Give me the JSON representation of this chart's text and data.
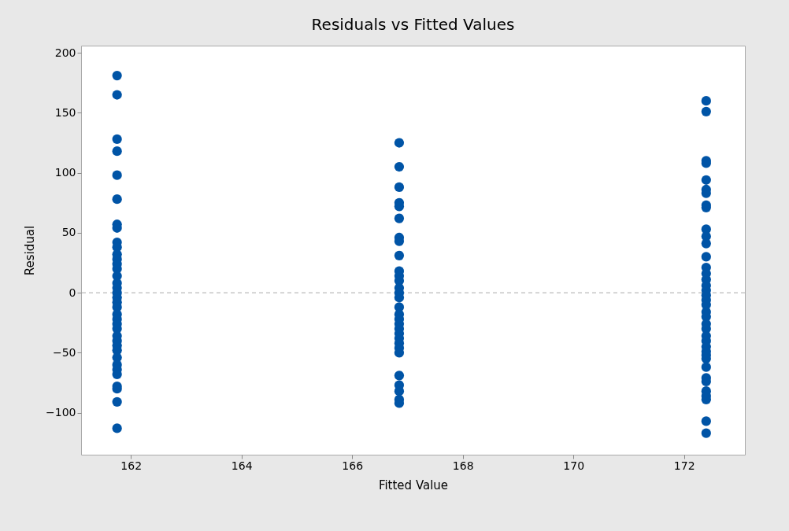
{
  "chart_data": {
    "type": "scatter",
    "title": "Residuals vs Fitted Values",
    "xlabel": "Fitted Value",
    "ylabel": "Residual",
    "xlim": [
      161.1,
      173.1
    ],
    "xticks": [
      162,
      164,
      166,
      168,
      170,
      172
    ],
    "ylim": [
      -135,
      206
    ],
    "yticks": [
      -100,
      -50,
      0,
      50,
      100,
      150,
      200
    ],
    "grid": false,
    "marker": "circle",
    "series": [
      {
        "color": "#0054a6",
        "x": [
          161.75,
          161.75,
          161.75,
          161.75,
          161.75,
          161.75,
          161.75,
          161.75,
          161.75,
          161.75,
          161.75,
          161.75,
          161.75,
          161.75,
          161.75,
          161.75,
          161.75,
          161.75,
          161.75,
          161.75,
          161.75,
          161.75,
          161.75,
          161.75,
          161.75,
          161.75,
          161.75,
          161.75,
          161.75,
          161.75,
          161.75,
          161.75,
          161.75,
          161.75,
          161.75,
          161.75,
          161.75,
          166.85,
          166.85,
          166.85,
          166.85,
          166.85,
          166.85,
          166.85,
          166.85,
          166.85,
          166.85,
          166.85,
          166.85,
          166.85,
          166.85,
          166.85,
          166.85,
          166.85,
          166.85,
          166.85,
          166.85,
          166.85,
          166.85,
          166.85,
          166.85,
          166.85,
          166.85,
          166.85,
          166.85,
          166.85,
          166.85,
          172.4,
          172.4,
          172.4,
          172.4,
          172.4,
          172.4,
          172.4,
          172.4,
          172.4,
          172.4,
          172.4,
          172.4,
          172.4,
          172.4,
          172.4,
          172.4,
          172.4,
          172.4,
          172.4,
          172.4,
          172.4,
          172.4,
          172.4,
          172.4,
          172.4,
          172.4,
          172.4,
          172.4,
          172.4,
          172.4,
          172.4,
          172.4,
          172.4,
          172.4,
          172.4,
          172.4,
          172.4,
          172.4,
          172.4
        ],
        "values": [
          181,
          165,
          128,
          118,
          98,
          78,
          57,
          54,
          42,
          38,
          32,
          28,
          24,
          20,
          14,
          8,
          4,
          0,
          -4,
          -8,
          -12,
          -18,
          -22,
          -26,
          -30,
          -36,
          -40,
          -44,
          -48,
          -54,
          -60,
          -64,
          -68,
          -78,
          -80,
          -91,
          -113,
          125,
          105,
          88,
          75,
          72,
          62,
          46,
          43,
          31,
          18,
          14,
          10,
          4,
          0,
          -4,
          -12,
          -18,
          -22,
          -26,
          -30,
          -34,
          -38,
          -42,
          -46,
          -50,
          -69,
          -77,
          -82,
          -89,
          -92,
          160,
          151,
          110,
          108,
          94,
          86,
          83,
          73,
          71,
          53,
          47,
          41,
          30,
          21,
          16,
          11,
          6,
          2,
          -2,
          -6,
          -10,
          -16,
          -20,
          -26,
          -30,
          -36,
          -40,
          -45,
          -49,
          -52,
          -55,
          -62,
          -71,
          -74,
          -82,
          -86,
          -89,
          -107,
          -117
        ]
      }
    ],
    "ref_lines": [
      {
        "axis": "y",
        "value": 0,
        "color": "#aaaaaa",
        "line_style": "dashed"
      }
    ]
  }
}
